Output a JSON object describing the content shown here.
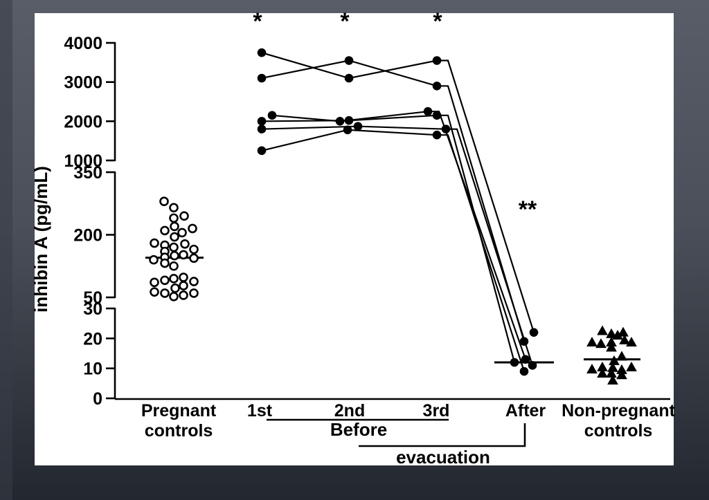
{
  "slide": {
    "bg_top": "#585d67",
    "bg_mid": "#4a4f59",
    "bg_bottom": "#23272f",
    "left_strip": "#383d47",
    "panel_bg": "#ffffff",
    "ink": "#000000"
  },
  "chart_data": {
    "type": "scatter",
    "title": "",
    "ylabel": "inhibin A (pg/mL)",
    "y_axis_segments": [
      {
        "min": 0,
        "max": 30,
        "ticks": [
          0,
          10,
          20,
          30
        ]
      },
      {
        "min": 50,
        "max": 350,
        "ticks": [
          50,
          200,
          350
        ]
      },
      {
        "min": 1000,
        "max": 4000,
        "ticks": [
          1000,
          2000,
          3000,
          4000
        ]
      }
    ],
    "x_labels": {
      "pregnant": [
        "Pregnant",
        "controls"
      ],
      "before": [
        "1st",
        "2nd",
        "3rd"
      ],
      "after": "After",
      "non_pregnant": [
        "Non-pregnant",
        "controls"
      ]
    },
    "annotations": {
      "star": "*",
      "double_star": "**",
      "before": "Before",
      "evacuation": "evacuation"
    },
    "pregnant_controls": {
      "marker": "open-circle",
      "median": 145,
      "points": [
        [
          280,
          -15
        ],
        [
          265,
          -1
        ],
        [
          245,
          14
        ],
        [
          240,
          -1
        ],
        [
          220,
          0
        ],
        [
          215,
          26
        ],
        [
          210,
          -14
        ],
        [
          205,
          11
        ],
        [
          195,
          0
        ],
        [
          180,
          -29
        ],
        [
          178,
          15
        ],
        [
          175,
          -14
        ],
        [
          170,
          -1
        ],
        [
          165,
          28
        ],
        [
          160,
          -14
        ],
        [
          152,
          13
        ],
        [
          150,
          0
        ],
        [
          146,
          -14
        ],
        [
          144,
          28
        ],
        [
          140,
          -30
        ],
        [
          132,
          -14
        ],
        [
          125,
          -1
        ],
        [
          98,
          13
        ],
        [
          95,
          -1
        ],
        [
          91,
          -14
        ],
        [
          88,
          28
        ],
        [
          86,
          -29
        ],
        [
          78,
          13
        ],
        [
          72,
          1
        ],
        [
          63,
          -29
        ],
        [
          60,
          -14
        ],
        [
          60,
          28
        ],
        [
          55,
          13
        ],
        [
          52,
          -1
        ]
      ]
    },
    "molar_pregnancies": {
      "marker": "filled-circle",
      "after_median": 12,
      "subjects": [
        {
          "before": [
            3750,
            3100,
            3550
          ],
          "after": 22,
          "dx": [
            0,
            0,
            0
          ],
          "after_dx": 14
        },
        {
          "before": [
            3100,
            3550,
            2900
          ],
          "after": 19,
          "dx": [
            0,
            0,
            0
          ],
          "after_dx": 0
        },
        {
          "before": [
            2150,
            2000,
            2250
          ],
          "after": 13,
          "dx": [
            15,
            -13,
            -13
          ],
          "after_dx": 2
        },
        {
          "before": [
            2000,
            2020,
            2150
          ],
          "after": 12,
          "dx": [
            0,
            0,
            0
          ],
          "after_dx": -14
        },
        {
          "before": [
            1800,
            1870,
            1800
          ],
          "after": 11,
          "dx": [
            0,
            13,
            13
          ],
          "after_dx": 12
        },
        {
          "before": [
            1250,
            1780,
            1650
          ],
          "after": 9,
          "dx": [
            0,
            -2,
            0
          ],
          "after_dx": 0
        }
      ]
    },
    "non_pregnant_controls": {
      "marker": "filled-triangle",
      "median": 13,
      "points": [
        [
          22.5,
          -14
        ],
        [
          22,
          16
        ],
        [
          21.5,
          -1
        ],
        [
          21,
          8
        ],
        [
          19.4,
          18
        ],
        [
          18.7,
          -29
        ],
        [
          18.7,
          -1
        ],
        [
          18.7,
          28
        ],
        [
          18.2,
          -16
        ],
        [
          17,
          -1
        ],
        [
          14,
          14
        ],
        [
          12.5,
          3
        ],
        [
          10.4,
          -14
        ],
        [
          10.4,
          28
        ],
        [
          10.2,
          1
        ],
        [
          9.7,
          -29
        ],
        [
          9.5,
          14
        ],
        [
          8.3,
          -14
        ],
        [
          8.3,
          -1
        ],
        [
          7.8,
          14
        ],
        [
          6,
          1
        ]
      ]
    }
  }
}
